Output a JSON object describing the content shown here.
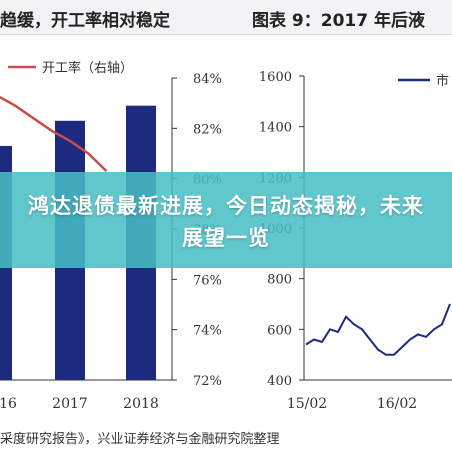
{
  "header": {
    "left_caption": "趋缓，开工率相对稳定",
    "right_caption": "图表 9：2017 年后液"
  },
  "banner": {
    "title": "鸿达退债最新进展，今日动态揭秘，未来展望一览"
  },
  "footer": {
    "source": "采度研究报告》，兴业证券经济与金融研究院整理"
  },
  "colors": {
    "bars": "#1c2a80",
    "rate_line": "#c84c4c",
    "price_line": "#1c2a80",
    "banner": "#46bec4"
  },
  "chart_data": [
    {
      "type": "bar",
      "categories": [
        "16",
        "2017",
        "2018"
      ],
      "values": [
        81.3,
        82.3,
        82.9
      ],
      "y_axis": {
        "side": "right",
        "ticks": [
          "84%",
          "82%",
          "80%",
          "78%",
          "76%",
          "74%",
          "72%"
        ],
        "range": [
          72,
          84
        ]
      },
      "line_series": {
        "name": "开工率（右轴）",
        "x": [
          15.5,
          15.75,
          16,
          16.25,
          16.5,
          16.75,
          17,
          17.25,
          17.5
        ],
        "y": [
          83.6,
          83.6,
          83.3,
          82.9,
          82.4,
          81.9,
          81.5,
          81.0,
          80.3
        ]
      },
      "legend": {
        "position": "top-left",
        "entries": [
          "开工率（右轴）"
        ]
      },
      "grid": false
    },
    {
      "type": "line",
      "x_ticks": [
        "15/02",
        "16/02"
      ],
      "y_axis": {
        "side": "left",
        "ticks": [
          "1600",
          "1400",
          "1200",
          "1000",
          "800",
          "600",
          "400"
        ],
        "range": [
          400,
          1600
        ]
      },
      "series": [
        {
          "name": "市",
          "x": [
            0,
            2,
            4,
            6,
            8,
            10,
            12,
            14,
            16,
            18,
            20,
            22,
            24,
            26,
            28,
            30,
            32,
            34,
            36
          ],
          "y": [
            540,
            560,
            550,
            600,
            590,
            650,
            620,
            600,
            560,
            520,
            500,
            500,
            530,
            560,
            580,
            570,
            600,
            620,
            700
          ]
        }
      ],
      "legend": {
        "position": "top-right",
        "entries": [
          "市"
        ]
      },
      "grid": false
    }
  ]
}
